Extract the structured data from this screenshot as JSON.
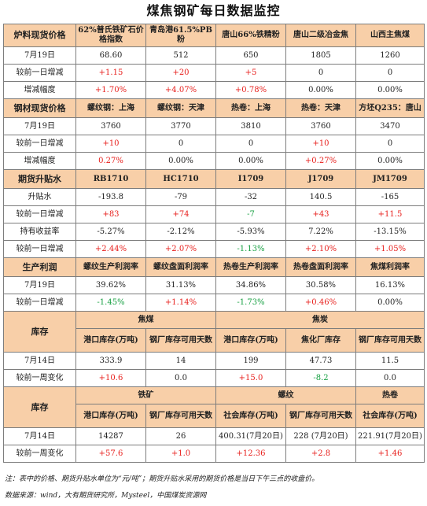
{
  "title": "煤焦钢矿每日数据监控",
  "sections": {
    "raw": {
      "label": "炉料现货价格",
      "cols": [
        "62%普氏铁矿石价格指数",
        "青岛港61.5%PB粉",
        "唐山66%铁精粉",
        "唐山二级冶金焦",
        "山西主焦煤"
      ],
      "rows": [
        {
          "label": "7月19日",
          "cells": [
            [
              "68.60",
              "black"
            ],
            [
              "512",
              "black"
            ],
            [
              "650",
              "black"
            ],
            [
              "1805",
              "black"
            ],
            [
              "1260",
              "black"
            ]
          ]
        },
        {
          "label": "较前一日增减",
          "cells": [
            [
              "+1.15",
              "red"
            ],
            [
              "+20",
              "red"
            ],
            [
              "+5",
              "red"
            ],
            [
              "0",
              "black"
            ],
            [
              "0",
              "black"
            ]
          ]
        },
        {
          "label": "增减幅度",
          "cells": [
            [
              "+1.70%",
              "red"
            ],
            [
              "+4.07%",
              "red"
            ],
            [
              "+0.78%",
              "red"
            ],
            [
              "0.00%",
              "black"
            ],
            [
              "0.00%",
              "black"
            ]
          ]
        }
      ]
    },
    "steel": {
      "label": "钢材现货价格",
      "cols": [
        "螺纹钢：上海",
        "螺纹钢：天津",
        "热卷：上海",
        "热卷：天津",
        "方坯Q235：唐山"
      ],
      "rows": [
        {
          "label": "7月19日",
          "cells": [
            [
              "3760",
              "black"
            ],
            [
              "3770",
              "black"
            ],
            [
              "3810",
              "black"
            ],
            [
              "3760",
              "black"
            ],
            [
              "3470",
              "black"
            ]
          ]
        },
        {
          "label": "较前一日增减",
          "cells": [
            [
              "+10",
              "red"
            ],
            [
              "0",
              "black"
            ],
            [
              "0",
              "black"
            ],
            [
              "+10",
              "red"
            ],
            [
              "0",
              "black"
            ]
          ]
        },
        {
          "label": "增减幅度",
          "cells": [
            [
              "0.27%",
              "red"
            ],
            [
              "0.00%",
              "black"
            ],
            [
              "0.00%",
              "black"
            ],
            [
              "+0.27%",
              "red"
            ],
            [
              "0.00%",
              "black"
            ]
          ]
        }
      ]
    },
    "futures": {
      "label": "期货升贴水",
      "cols": [
        "RB1710",
        "HC1710",
        "I1709",
        "J1709",
        "JM1709"
      ],
      "rows": [
        {
          "label": "升贴水",
          "cells": [
            [
              "-193.8",
              "black"
            ],
            [
              "-79",
              "black"
            ],
            [
              "-32",
              "black"
            ],
            [
              "140.5",
              "black"
            ],
            [
              "-165",
              "black"
            ]
          ]
        },
        {
          "label": "较前一日增减",
          "cells": [
            [
              "+83",
              "red"
            ],
            [
              "+74",
              "red"
            ],
            [
              "-7",
              "green"
            ],
            [
              "+43",
              "red"
            ],
            [
              "+11.5",
              "red"
            ]
          ]
        },
        {
          "label": "持有收益率",
          "cells": [
            [
              "-5.27%",
              "black"
            ],
            [
              "-2.12%",
              "black"
            ],
            [
              "-5.93%",
              "black"
            ],
            [
              "7.22%",
              "black"
            ],
            [
              "-13.15%",
              "black"
            ]
          ]
        },
        {
          "label": "较前一日增减",
          "cells": [
            [
              "+2.44%",
              "red"
            ],
            [
              "+2.07%",
              "red"
            ],
            [
              "-1.13%",
              "green"
            ],
            [
              "+2.10%",
              "red"
            ],
            [
              "+1.05%",
              "red"
            ]
          ]
        }
      ]
    },
    "profit": {
      "label": "生产利润",
      "cols": [
        "螺纹生产利润率",
        "螺纹盘面利润率",
        "热卷生产利润率",
        "热卷盘面利润率",
        "焦煤利润率"
      ],
      "rows": [
        {
          "label": "7月19日",
          "cells": [
            [
              "39.62%",
              "black"
            ],
            [
              "31.13%",
              "black"
            ],
            [
              "34.86%",
              "black"
            ],
            [
              "30.58%",
              "black"
            ],
            [
              "16.13%",
              "black"
            ]
          ]
        },
        {
          "label": "较前一日增减",
          "cells": [
            [
              "-1.45%",
              "green"
            ],
            [
              "+1.14%",
              "red"
            ],
            [
              "-1.73%",
              "green"
            ],
            [
              "+0.46%",
              "red"
            ],
            [
              "0.00%",
              "black"
            ]
          ]
        }
      ]
    },
    "stock1": {
      "label": "库存",
      "groups": [
        "焦煤",
        "焦炭"
      ],
      "cols": [
        "港口库存(万吨)",
        "钢厂库存可用天数",
        "港口库存(万吨)",
        "焦化厂库存",
        "钢厂库存可用天数"
      ],
      "rows": [
        {
          "label": "7月14日",
          "cells": [
            [
              "333.9",
              "black"
            ],
            [
              "14",
              "black"
            ],
            [
              "199",
              "black"
            ],
            [
              "47.73",
              "black"
            ],
            [
              "11.5",
              "black"
            ]
          ]
        },
        {
          "label": "较前一周变化",
          "cells": [
            [
              "+10.6",
              "red"
            ],
            [
              "0.0",
              "black"
            ],
            [
              "+15.0",
              "red"
            ],
            [
              "-8.2",
              "green"
            ],
            [
              "0.0",
              "black"
            ]
          ]
        }
      ]
    },
    "stock2": {
      "label": "库存",
      "groups": [
        "铁矿",
        "螺纹",
        "热卷"
      ],
      "cols": [
        "港口库存(万吨)",
        "钢厂库存可用天数",
        "社会库存(万吨)",
        "钢厂库存可用天数",
        "社会库存(万吨)"
      ],
      "rows": [
        {
          "label": "7月14日",
          "cells": [
            [
              "14287",
              "black"
            ],
            [
              "26",
              "black"
            ],
            [
              "400.31(7月20日)",
              "black"
            ],
            [
              "228 (7月20日)",
              "black"
            ],
            [
              "221.91(7月20日)",
              "black"
            ]
          ]
        },
        {
          "label": "较前一周变化",
          "cells": [
            [
              "+57.6",
              "red"
            ],
            [
              "+1.0",
              "red"
            ],
            [
              "+12.36",
              "red"
            ],
            [
              "+2.8",
              "red"
            ],
            [
              "+1.46",
              "red"
            ]
          ]
        }
      ]
    }
  },
  "notes": {
    "note1": "注：表中的价格、期货升贴水单位为“元/吨”；期货升贴水采用的期货价格是当日下午三点的收盘价。",
    "source": "数据来源：wind，大有期货研究所，Mysteel，中国煤炭资源网"
  }
}
